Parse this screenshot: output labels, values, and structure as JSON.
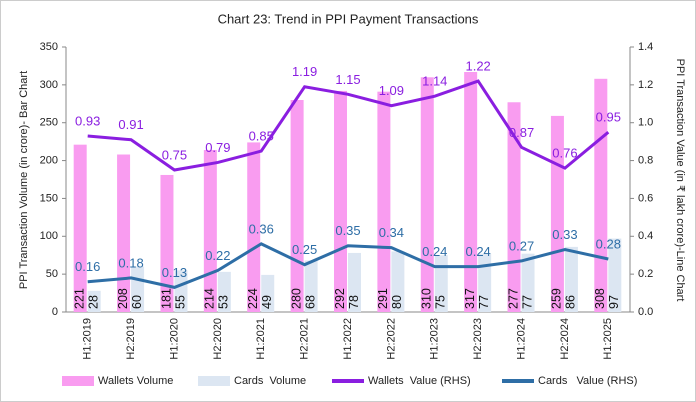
{
  "chart_data": {
    "type": "combo",
    "title": "Chart 23: Trend in PPI Payment Transactions",
    "y_label": "PPI Transaction Volume (in crore)- Bar Chart",
    "y2_label": "PPI Transaction Value (in ₹ lakh crore)-Line Chart",
    "categories": [
      "H1:2019",
      "H2:2019",
      "H1:2020",
      "H2:2020",
      "H1:2021",
      "H2:2021",
      "H1:2022",
      "H2:2022",
      "H1:2023",
      "H2:2023",
      "H1:2024",
      "H2:2024",
      "H1:2025"
    ],
    "series": [
      {
        "name": "Wallets Volume",
        "type": "bar",
        "color": "#f99cf0",
        "values": [
          221,
          208,
          181,
          214,
          224,
          280,
          292,
          291,
          310,
          317,
          277,
          259,
          308
        ]
      },
      {
        "name": "Cards  Volume",
        "type": "bar",
        "color": "#dce6f2",
        "values": [
          28,
          60,
          55,
          53,
          49,
          68,
          78,
          80,
          75,
          77,
          77,
          86,
          97
        ]
      },
      {
        "name": "Wallets  Value (RHS)",
        "type": "line",
        "axis": "y2",
        "color": "#8a1ee0",
        "values": [
          0.93,
          0.91,
          0.75,
          0.79,
          0.85,
          1.19,
          1.15,
          1.09,
          1.14,
          1.22,
          0.87,
          0.76,
          0.95
        ]
      },
      {
        "name": "Cards   Value (RHS)",
        "type": "line",
        "axis": "y2",
        "color": "#2e6ea6",
        "values": [
          0.16,
          0.18,
          0.13,
          0.22,
          0.36,
          0.25,
          0.35,
          0.34,
          0.24,
          0.24,
          0.27,
          0.33,
          0.28
        ]
      }
    ],
    "ylim": [
      0,
      350
    ],
    "yticks": [
      0,
      50,
      100,
      150,
      200,
      250,
      300,
      350
    ],
    "y2lim": [
      0,
      1.4
    ],
    "y2ticks": [
      {
        "value": 0,
        "label": "0.0"
      },
      0.2,
      0.4,
      0.6,
      0.8,
      {
        "value": 1,
        "label": "1.0"
      },
      1.2,
      1.4
    ],
    "legend": "bottom"
  }
}
